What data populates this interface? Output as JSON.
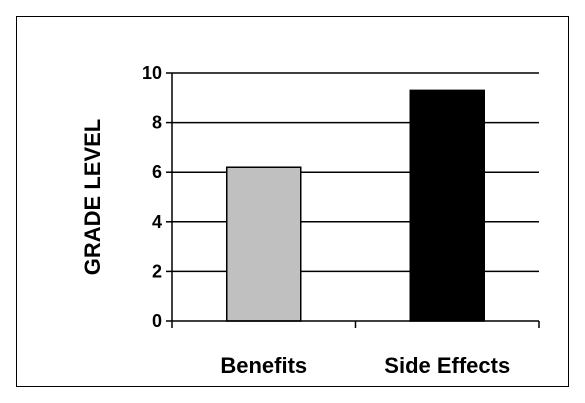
{
  "chart_data": {
    "type": "bar",
    "title": "",
    "xlabel": "",
    "ylabel": "GRADE LEVEL",
    "ylim": [
      0,
      10
    ],
    "yticks": [
      "0",
      "2",
      "4",
      "6",
      "8",
      "10"
    ],
    "categories": [
      "Benefits",
      "Side Effects"
    ],
    "values": [
      6.2,
      9.3
    ],
    "bar_colors": [
      "#c0c0c0",
      "#000000"
    ],
    "grid": true,
    "legend": "none"
  }
}
